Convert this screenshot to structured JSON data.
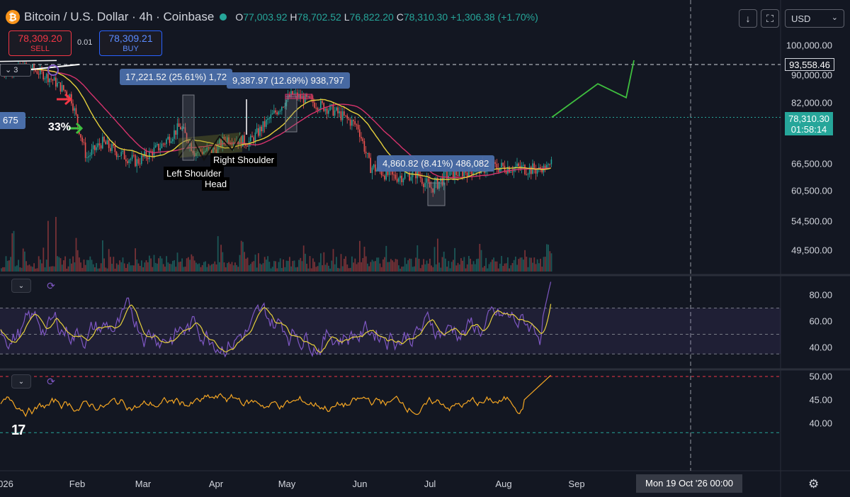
{
  "header": {
    "symbol_title": "Bitcoin / U.S. Dollar · 4h · Coinbase",
    "open_label": "O",
    "open": "77,003.92",
    "high_label": "H",
    "high": "78,702.52",
    "low_label": "L",
    "low": "76,822.20",
    "close_label": "C",
    "close": "78,310.30",
    "change": "+1,306.38 (+1.70%)"
  },
  "trade": {
    "sell_price": "78,309.20",
    "sell_label": "SELL",
    "spread": "0.01",
    "buy_price": "78,309.21",
    "buy_label": "BUY"
  },
  "toolbar": {
    "currency": "USD",
    "download_icon": "arrow-down-icon",
    "fullscreen_icon": "fullscreen-icon"
  },
  "price_axis": {
    "ticks": [
      "100,000.00",
      "90,000.00",
      "82,000.00",
      "66,500.00",
      "60,500.00",
      "54,500.00",
      "49,500.00"
    ],
    "level": "93,558.46",
    "last_price": "78,310.30",
    "countdown": "01:58:14"
  },
  "rsi_axis": {
    "ticks": [
      "80.00",
      "60.00",
      "40.00"
    ]
  },
  "osc_axis": {
    "ticks": [
      "50.00",
      "45.00",
      "40.00"
    ]
  },
  "time_axis": {
    "ticks": [
      "026",
      "Feb",
      "Mar",
      "Apr",
      "May",
      "Jun",
      "Jul",
      "Aug",
      "Sep"
    ],
    "crosshair": "Mon 19 Oct '26   00:00"
  },
  "annotations": {
    "measure1": "17,221.52 (25.61%) 1,72",
    "measure2": "9,387.97 (12.69%) 938,797",
    "measure3": "4,860.82 (8.41%) 486,082",
    "left_shoulder": "Left Shoulder",
    "head": "Head",
    "right_shoulder": "Right Shoulder",
    "pct": "33%",
    "side_label": "675",
    "indicator_count": "3"
  },
  "colors": {
    "background": "#131722",
    "up": "#26a69a",
    "down": "#ef5350",
    "ma_yellow": "#e6d03c",
    "ma_pink": "#d6336c",
    "rsi": "#7e57c2",
    "osc": "#f5a623",
    "projection": "#3fbf3f"
  },
  "chart_data": [
    {
      "type": "candlestick",
      "title": "Bitcoin / U.S. Dollar · 4h · Coinbase",
      "x": [
        "Feb",
        "Mar",
        "Apr",
        "May",
        "Jun",
        "Jul",
        "Aug",
        "Sep"
      ],
      "path": [
        [
          "Jan 2026",
          91000
        ],
        [
          "Jan 10",
          93000
        ],
        [
          "Jan 20",
          89000
        ],
        [
          "Jan 28",
          84000
        ],
        [
          "Feb 5",
          68000
        ],
        [
          "Feb 12",
          72000
        ],
        [
          "Feb 20",
          69000
        ],
        [
          "Feb 28",
          67000
        ],
        [
          "Mar 8",
          71000
        ],
        [
          "Mar 16",
          76000
        ],
        [
          "Mar 22",
          69500
        ],
        [
          "Mar 30",
          70000
        ],
        [
          "Apr 5",
          73000
        ],
        [
          "Apr 15",
          72000
        ],
        [
          "Apr 25",
          79000
        ],
        [
          "May 3",
          84500
        ],
        [
          "May 12",
          82000
        ],
        [
          "May 20",
          80000
        ],
        [
          "May 30",
          76000
        ],
        [
          "Jun 5",
          66000
        ],
        [
          "Jun 15",
          63500
        ],
        [
          "Jun 25",
          64500
        ],
        [
          "Jul 1",
          61000
        ],
        [
          "Jul 8",
          64000
        ],
        [
          "Jul 20",
          65500
        ],
        [
          "Aug 1",
          65800
        ],
        [
          "Aug 15",
          65200
        ],
        [
          "Aug 20",
          66000
        ],
        [
          "Aug 22",
          78310
        ]
      ],
      "ma_fast_color": "yellow",
      "ma_slow_color": "pink",
      "projection": [
        [
          "Aug 22",
          78310
        ],
        [
          "Sep 10",
          87500
        ],
        [
          "Sep 22",
          83500
        ],
        [
          "Oct 10",
          95000
        ]
      ],
      "levels": [
        93558.46
      ],
      "last": 78310.3,
      "ylim": [
        46000,
        104000
      ]
    },
    {
      "type": "line",
      "name": "RSI",
      "ticks": [
        40,
        60,
        80
      ],
      "bands": [
        35,
        50,
        70
      ],
      "ylim": [
        28,
        92
      ]
    },
    {
      "type": "line",
      "name": "Oscillator",
      "ticks": [
        40,
        45,
        50
      ],
      "levels": [
        38,
        50
      ],
      "ylim": [
        35,
        52
      ]
    }
  ]
}
